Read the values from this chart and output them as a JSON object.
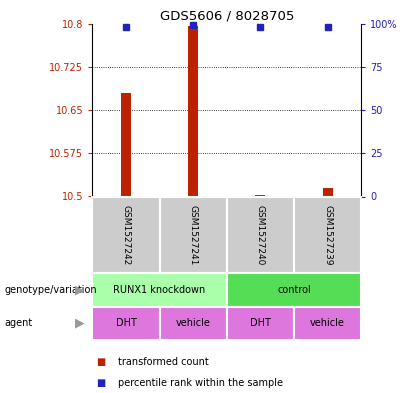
{
  "title": "GDS5606 / 8028705",
  "samples": [
    "GSM1527242",
    "GSM1527241",
    "GSM1527240",
    "GSM1527239"
  ],
  "bar_values": [
    10.68,
    10.795,
    10.502,
    10.515
  ],
  "bar_base": 10.5,
  "percentile_values": [
    98,
    99,
    98,
    98
  ],
  "ylim_left": [
    10.5,
    10.8
  ],
  "ylim_right": [
    0,
    100
  ],
  "yticks_left": [
    10.5,
    10.575,
    10.65,
    10.725,
    10.8
  ],
  "yticks_right": [
    0,
    25,
    50,
    75,
    100
  ],
  "ytick_labels_left": [
    "10.5",
    "10.575",
    "10.65",
    "10.725",
    "10.8"
  ],
  "ytick_labels_right": [
    "0",
    "25",
    "50",
    "75",
    "100%"
  ],
  "bar_color": "#bb2200",
  "percentile_color": "#2222bb",
  "sample_bg_color": "#cccccc",
  "genotype_color_1": "#aaffaa",
  "genotype_color_2": "#55dd55",
  "agent_color": "#dd77dd",
  "genotype_labels": [
    "RUNX1 knockdown",
    "control"
  ],
  "agent_labels": [
    "DHT",
    "vehicle",
    "DHT",
    "vehicle"
  ],
  "row_label_genotype": "genotype/variation",
  "row_label_agent": "agent",
  "bar_width": 0.15,
  "legend_red_label": "transformed count",
  "legend_blue_label": "percentile rank within the sample"
}
